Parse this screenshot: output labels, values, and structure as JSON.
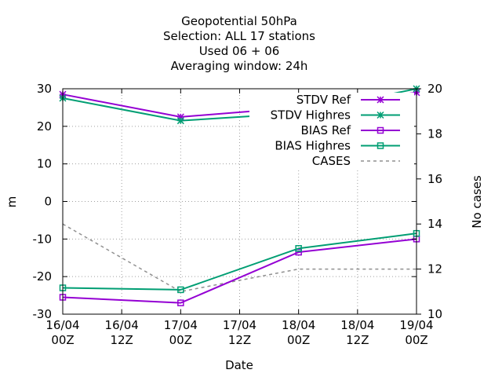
{
  "chart_data": {
    "type": "line",
    "title_lines": [
      "Geopotential 50hPa",
      "Selection: ALL     17 stations",
      "Used  06 + 06",
      "Averaging window: 24h"
    ],
    "xlabel": "Date",
    "ylabel": "m",
    "y2label": "No cases",
    "x_ticks": [
      [
        "16/04",
        "00Z"
      ],
      [
        "16/04",
        "12Z"
      ],
      [
        "17/04",
        "00Z"
      ],
      [
        "17/04",
        "12Z"
      ],
      [
        "18/04",
        "00Z"
      ],
      [
        "18/04",
        "12Z"
      ],
      [
        "19/04",
        "00Z"
      ]
    ],
    "xlim": [
      0,
      6
    ],
    "ylim": [
      -30,
      30
    ],
    "y_ticks": [
      -30,
      -20,
      -10,
      0,
      10,
      20,
      30
    ],
    "y2lim": [
      10,
      20
    ],
    "y2_ticks": [
      10,
      12,
      14,
      16,
      18,
      20
    ],
    "grid": true,
    "legend_position": "top-right",
    "series": [
      {
        "name": "STDV Ref",
        "axis": "y",
        "marker": "star",
        "color": "#9400d3",
        "x": [
          0,
          2,
          4,
          6
        ],
        "values": [
          28.5,
          22.5,
          25.0,
          29.0
        ]
      },
      {
        "name": "STDV Highres",
        "axis": "y",
        "marker": "star",
        "color": "#009e73",
        "x": [
          0,
          2,
          4,
          6
        ],
        "values": [
          27.5,
          21.5,
          23.5,
          30.0
        ]
      },
      {
        "name": "BIAS Ref",
        "axis": "y",
        "marker": "square",
        "color": "#9400d3",
        "x": [
          0,
          2,
          4,
          6
        ],
        "values": [
          -25.5,
          -27.0,
          -13.5,
          -10.0
        ]
      },
      {
        "name": "BIAS Highres",
        "axis": "y",
        "marker": "square",
        "color": "#009e73",
        "x": [
          0,
          2,
          4,
          6
        ],
        "values": [
          -23.0,
          -23.5,
          -12.5,
          -8.5
        ]
      },
      {
        "name": "CASES",
        "axis": "y2",
        "marker": "none",
        "color": "#909090",
        "dashed": true,
        "x": [
          0,
          2,
          4,
          6
        ],
        "values": [
          14.0,
          11.0,
          12.0,
          12.0
        ]
      }
    ]
  }
}
